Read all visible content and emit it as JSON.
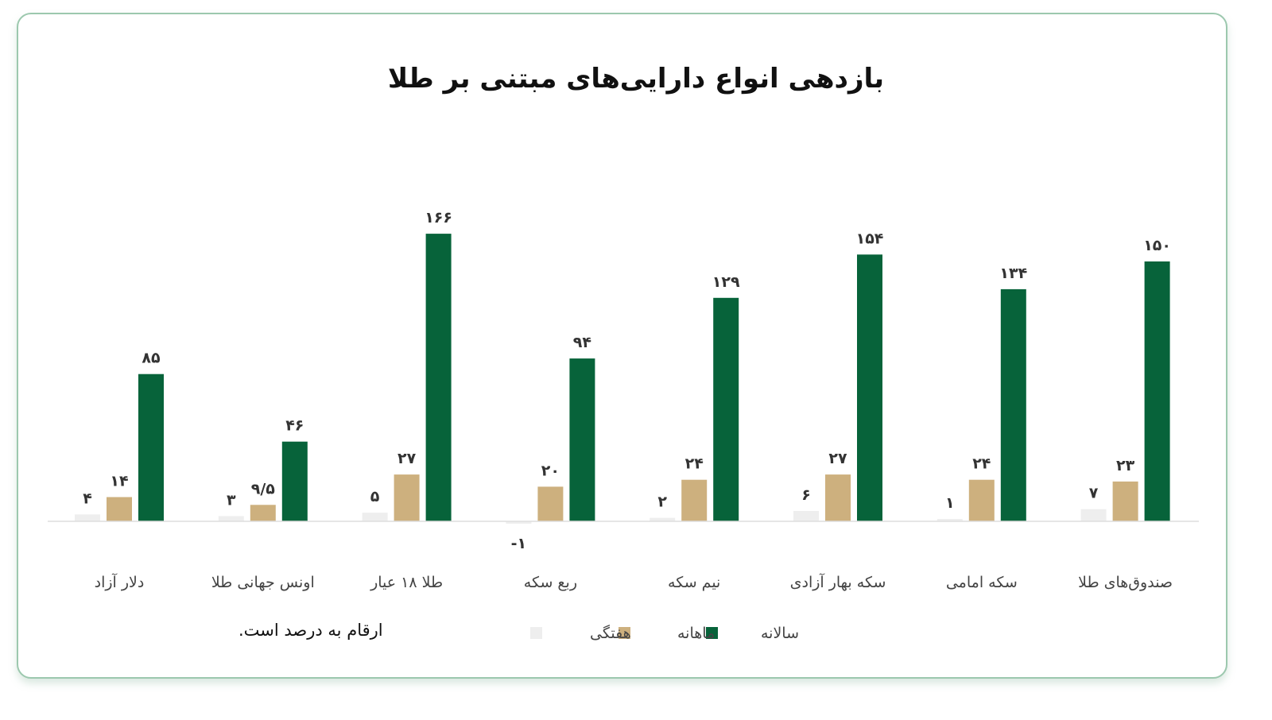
{
  "chart_data": {
    "type": "bar",
    "title": "بازدهی انواع دارایی‌های مبتنی بر طلا",
    "note": "ارقام به درصد است.",
    "categories": [
      "دلار آزاد",
      "اونس جهانی طلا",
      "طلا ۱۸ عیار",
      "ربع سکه",
      "نیم سکه",
      "سکه بهار آزادی",
      "سکه امامی",
      "صندوق‌های طلا"
    ],
    "series": [
      {
        "name": "هفتگی",
        "color": "#eeeeee",
        "values": [
          4,
          3,
          5,
          -1,
          2,
          6,
          1,
          7
        ],
        "labels": [
          "۴",
          "۳",
          "۵",
          "-۱",
          "۲",
          "۶",
          "۱",
          "۷"
        ]
      },
      {
        "name": "ماهانه",
        "color": "#cdb07e",
        "values": [
          14,
          9.5,
          27,
          20,
          24,
          27,
          24,
          23
        ],
        "labels": [
          "۱۴",
          "۹/۵",
          "۲۷",
          "۲۰",
          "۲۴",
          "۲۷",
          "۲۴",
          "۲۳"
        ]
      },
      {
        "name": "سالانه",
        "color": "#07633a",
        "values": [
          85,
          46,
          166,
          94,
          129,
          154,
          134,
          150
        ],
        "labels": [
          "۸۵",
          "۴۶",
          "۱۶۶",
          "۹۴",
          "۱۲۹",
          "۱۵۴",
          "۱۳۴",
          "۱۵۰"
        ]
      }
    ],
    "legend_position": "bottom",
    "grid": false
  }
}
